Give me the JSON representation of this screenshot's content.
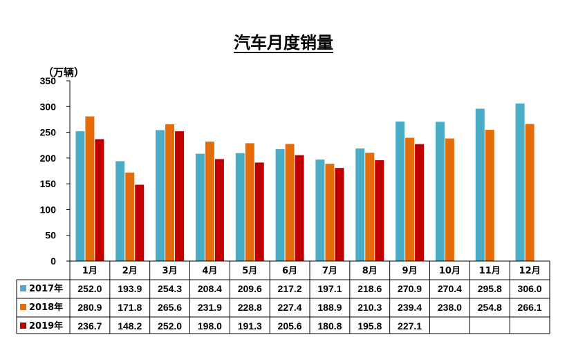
{
  "chart_data": {
    "type": "bar",
    "title": "汽车月度销量",
    "unit_label": "（万辆）",
    "ylim": [
      0,
      350
    ],
    "yticks": [
      0,
      50,
      100,
      150,
      200,
      250,
      300,
      350
    ],
    "categories": [
      "1月",
      "2月",
      "3月",
      "4月",
      "5月",
      "6月",
      "7月",
      "8月",
      "9月",
      "10月",
      "11月",
      "12月"
    ],
    "series": [
      {
        "name": "2017年",
        "color": "#4BACC6",
        "values": [
          252.0,
          193.9,
          254.3,
          208.4,
          209.6,
          217.2,
          197.1,
          218.6,
          270.9,
          270.4,
          295.8,
          306.0
        ],
        "labels": [
          "252.0",
          "193.9",
          "254.3",
          "208.4",
          "209.6",
          "217.2",
          "197.1",
          "218.6",
          "270.9",
          "270.4",
          "295.8",
          "306.0"
        ]
      },
      {
        "name": "2018年",
        "color": "#E46C0A",
        "values": [
          280.9,
          171.8,
          265.6,
          231.9,
          228.8,
          227.4,
          188.9,
          210.3,
          239.4,
          238.0,
          254.8,
          266.1
        ],
        "labels": [
          "280.9",
          "171.8",
          "265.6",
          "231.9",
          "228.8",
          "227.4",
          "188.9",
          "210.3",
          "239.4",
          "238.0",
          "254.8",
          "266.1"
        ]
      },
      {
        "name": "2019年",
        "color": "#C00000",
        "values": [
          236.7,
          148.2,
          252.0,
          198.0,
          191.3,
          205.6,
          180.8,
          195.8,
          227.1,
          null,
          null,
          null
        ],
        "labels": [
          "236.7",
          "148.2",
          "252.0",
          "198.0",
          "191.3",
          "205.6",
          "180.8",
          "195.8",
          "227.1",
          "",
          "",
          ""
        ]
      }
    ],
    "grid": false,
    "legend": "data-table-rows"
  }
}
